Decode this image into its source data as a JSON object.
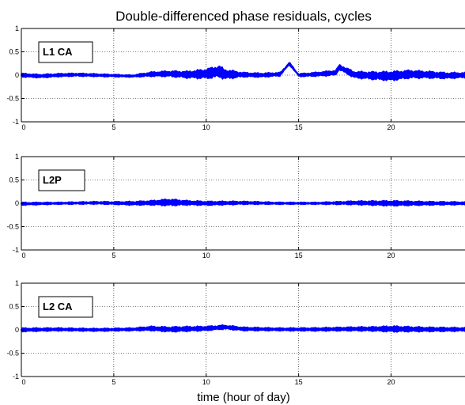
{
  "title": "Double-differenced phase residuals, cycles",
  "xlabel": "time (hour of day)",
  "colors": {
    "series": "#0000ff",
    "axes": "#000000",
    "grid": "#000000",
    "background": "#ffffff"
  },
  "chart_data": [
    {
      "type": "scatter",
      "legend": "L1 CA",
      "legend_placement": "top-left",
      "xlim": [
        0,
        24
      ],
      "ylim": [
        -1,
        1
      ],
      "x_ticks": [
        "0",
        "5",
        "10",
        "15",
        "20"
      ],
      "y_ticks": [
        "1",
        "0.5",
        "0",
        "-0.5",
        "-1"
      ],
      "grid": true,
      "series": [
        {
          "points": [
            [
              0,
              0
            ],
            [
              1,
              -0.02
            ],
            [
              2,
              0
            ],
            [
              3,
              0.01
            ],
            [
              4,
              0
            ],
            [
              5,
              -0.01
            ],
            [
              6,
              -0.02
            ],
            [
              7,
              0.02
            ],
            [
              8,
              0.03
            ],
            [
              9,
              0.01
            ],
            [
              10,
              0.03
            ],
            [
              10.7,
              0.08
            ],
            [
              11,
              0.02
            ],
            [
              12,
              0.01
            ],
            [
              13,
              0
            ],
            [
              14,
              0.02
            ],
            [
              14.5,
              0.25
            ],
            [
              15,
              0
            ],
            [
              16,
              0.02
            ],
            [
              17,
              0.05
            ],
            [
              17.2,
              0.17
            ],
            [
              18,
              0.01
            ],
            [
              19,
              -0.01
            ],
            [
              20,
              -0.02
            ],
            [
              21,
              0.02
            ],
            [
              22,
              0.01
            ],
            [
              23,
              -0.01
            ],
            [
              24,
              0
            ]
          ],
          "spread": [
            [
              0,
              0.06
            ],
            [
              4,
              0.05
            ],
            [
              6,
              0.04
            ],
            [
              7,
              0.07
            ],
            [
              9,
              0.1
            ],
            [
              10.7,
              0.16
            ],
            [
              12,
              0.07
            ],
            [
              14,
              0.06
            ],
            [
              15,
              0.05
            ],
            [
              17,
              0.08
            ],
            [
              19,
              0.11
            ],
            [
              20,
              0.13
            ],
            [
              22,
              0.1
            ],
            [
              24,
              0.08
            ]
          ]
        }
      ]
    },
    {
      "type": "scatter",
      "legend": "L2P",
      "legend_placement": "top-left",
      "xlim": [
        0,
        24
      ],
      "ylim": [
        -1,
        1
      ],
      "x_ticks": [
        "0",
        "5",
        "10",
        "15",
        "20"
      ],
      "y_ticks": [
        "1",
        "0.5",
        "0",
        "-0.5",
        "-1"
      ],
      "grid": true,
      "series": [
        {
          "points": [
            [
              0,
              -0.01
            ],
            [
              2,
              0
            ],
            [
              4,
              0.01
            ],
            [
              6,
              0
            ],
            [
              8,
              0.02
            ],
            [
              10,
              0
            ],
            [
              12,
              0.01
            ],
            [
              14,
              0
            ],
            [
              16,
              0
            ],
            [
              18,
              0.01
            ],
            [
              20,
              0
            ],
            [
              22,
              0
            ],
            [
              24,
              0
            ]
          ],
          "spread": [
            [
              0,
              0.05
            ],
            [
              2,
              0.04
            ],
            [
              5,
              0.05
            ],
            [
              7,
              0.07
            ],
            [
              8,
              0.1
            ],
            [
              9,
              0.07
            ],
            [
              11,
              0.06
            ],
            [
              14,
              0.04
            ],
            [
              16,
              0.04
            ],
            [
              18,
              0.06
            ],
            [
              20,
              0.08
            ],
            [
              22,
              0.06
            ],
            [
              24,
              0.05
            ]
          ]
        }
      ]
    },
    {
      "type": "scatter",
      "legend": "L2 CA",
      "legend_placement": "top-left",
      "xlim": [
        0,
        24
      ],
      "ylim": [
        -1,
        1
      ],
      "x_ticks": [
        "0",
        "5",
        "10",
        "15",
        "20"
      ],
      "y_ticks": [
        "1",
        "0.5",
        "0",
        "-0.5",
        "-1"
      ],
      "grid": true,
      "series": [
        {
          "points": [
            [
              0,
              0
            ],
            [
              2,
              0.01
            ],
            [
              4,
              0
            ],
            [
              6,
              0.01
            ],
            [
              7,
              0.03
            ],
            [
              8,
              0.01
            ],
            [
              10,
              0.03
            ],
            [
              11,
              0.06
            ],
            [
              12,
              0.02
            ],
            [
              14,
              0.01
            ],
            [
              16,
              0.01
            ],
            [
              18,
              0.02
            ],
            [
              20,
              0.02
            ],
            [
              22,
              0.01
            ],
            [
              24,
              0.01
            ]
          ],
          "spread": [
            [
              0,
              0.06
            ],
            [
              3,
              0.05
            ],
            [
              6,
              0.05
            ],
            [
              7,
              0.07
            ],
            [
              8.5,
              0.08
            ],
            [
              10,
              0.07
            ],
            [
              12,
              0.06
            ],
            [
              14,
              0.05
            ],
            [
              17,
              0.06
            ],
            [
              19,
              0.07
            ],
            [
              20,
              0.09
            ],
            [
              22,
              0.07
            ],
            [
              24,
              0.06
            ]
          ]
        }
      ]
    }
  ]
}
